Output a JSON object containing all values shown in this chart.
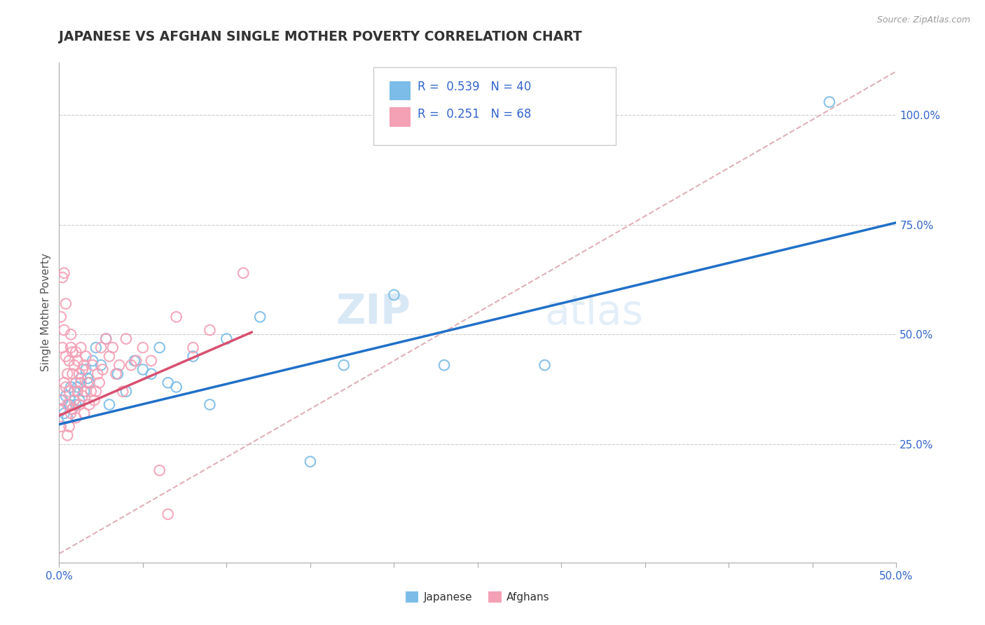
{
  "title": "JAPANESE VS AFGHAN SINGLE MOTHER POVERTY CORRELATION CHART",
  "source": "Source: ZipAtlas.com",
  "ylabel": "Single Mother Poverty",
  "xlim": [
    0.0,
    0.5
  ],
  "ylim": [
    -0.02,
    1.12
  ],
  "xticks": [
    0.0,
    0.05,
    0.1,
    0.15,
    0.2,
    0.25,
    0.3,
    0.35,
    0.4,
    0.45,
    0.5
  ],
  "xticklabels_show": {
    "0.0": "0.0%",
    "0.5": "50.0%"
  },
  "yticks_right": [
    0.25,
    0.5,
    0.75,
    1.0
  ],
  "yticklabels_right": [
    "25.0%",
    "50.0%",
    "75.0%",
    "100.0%"
  ],
  "japanese_R": 0.539,
  "japanese_N": 40,
  "afghan_R": 0.251,
  "afghan_N": 68,
  "japanese_color": "#7bbde8",
  "afghan_color": "#f4a0b5",
  "japanese_line_color": "#2070c8",
  "afghan_line_color": "#d85070",
  "ref_line_color": "#e0b0b8",
  "text_color": "#3366cc",
  "axis_color": "#3366cc",
  "title_color": "#333333",
  "watermark_zip": "ZIP",
  "watermark_atlas": "atlas",
  "japanese_line_x": [
    0.0,
    0.5
  ],
  "japanese_line_y": [
    0.295,
    0.755
  ],
  "afghan_line_x": [
    0.0,
    0.115
  ],
  "afghan_line_y": [
    0.315,
    0.505
  ],
  "ref_line_x": [
    0.0,
    0.5
  ],
  "ref_line_y": [
    0.0,
    1.1
  ],
  "japanese_scatter_x": [
    0.001,
    0.002,
    0.003,
    0.004,
    0.005,
    0.006,
    0.007,
    0.008,
    0.009,
    0.01,
    0.011,
    0.012,
    0.013,
    0.015,
    0.016,
    0.017,
    0.018,
    0.02,
    0.022,
    0.025,
    0.028,
    0.03,
    0.035,
    0.04,
    0.045,
    0.05,
    0.055,
    0.06,
    0.065,
    0.07,
    0.08,
    0.09,
    0.1,
    0.12,
    0.15,
    0.17,
    0.2,
    0.23,
    0.29,
    0.46
  ],
  "japanese_scatter_y": [
    0.33,
    0.35,
    0.32,
    0.36,
    0.31,
    0.34,
    0.38,
    0.33,
    0.37,
    0.34,
    0.38,
    0.35,
    0.4,
    0.37,
    0.42,
    0.4,
    0.39,
    0.44,
    0.47,
    0.43,
    0.49,
    0.34,
    0.41,
    0.37,
    0.44,
    0.42,
    0.41,
    0.47,
    0.39,
    0.38,
    0.45,
    0.34,
    0.49,
    0.54,
    0.21,
    0.43,
    0.59,
    0.43,
    0.43,
    1.03
  ],
  "afghan_scatter_x": [
    0.001,
    0.001,
    0.001,
    0.002,
    0.002,
    0.002,
    0.003,
    0.003,
    0.003,
    0.004,
    0.004,
    0.004,
    0.005,
    0.005,
    0.005,
    0.006,
    0.006,
    0.006,
    0.007,
    0.007,
    0.007,
    0.008,
    0.008,
    0.008,
    0.009,
    0.009,
    0.01,
    0.01,
    0.01,
    0.011,
    0.011,
    0.012,
    0.012,
    0.013,
    0.013,
    0.014,
    0.014,
    0.015,
    0.015,
    0.016,
    0.016,
    0.017,
    0.018,
    0.019,
    0.02,
    0.021,
    0.022,
    0.023,
    0.024,
    0.025,
    0.026,
    0.028,
    0.03,
    0.032,
    0.034,
    0.036,
    0.038,
    0.04,
    0.043,
    0.046,
    0.05,
    0.055,
    0.06,
    0.065,
    0.07,
    0.08,
    0.09,
    0.11
  ],
  "afghan_scatter_y": [
    0.29,
    0.35,
    0.54,
    0.33,
    0.47,
    0.63,
    0.39,
    0.51,
    0.64,
    0.57,
    0.38,
    0.45,
    0.27,
    0.34,
    0.41,
    0.29,
    0.44,
    0.37,
    0.47,
    0.32,
    0.5,
    0.33,
    0.41,
    0.46,
    0.35,
    0.43,
    0.31,
    0.39,
    0.46,
    0.37,
    0.44,
    0.34,
    0.41,
    0.39,
    0.47,
    0.36,
    0.42,
    0.32,
    0.43,
    0.37,
    0.45,
    0.39,
    0.34,
    0.37,
    0.43,
    0.35,
    0.37,
    0.41,
    0.39,
    0.47,
    0.42,
    0.49,
    0.45,
    0.47,
    0.41,
    0.43,
    0.37,
    0.49,
    0.43,
    0.44,
    0.47,
    0.44,
    0.19,
    0.09,
    0.54,
    0.47,
    0.51,
    0.64
  ]
}
